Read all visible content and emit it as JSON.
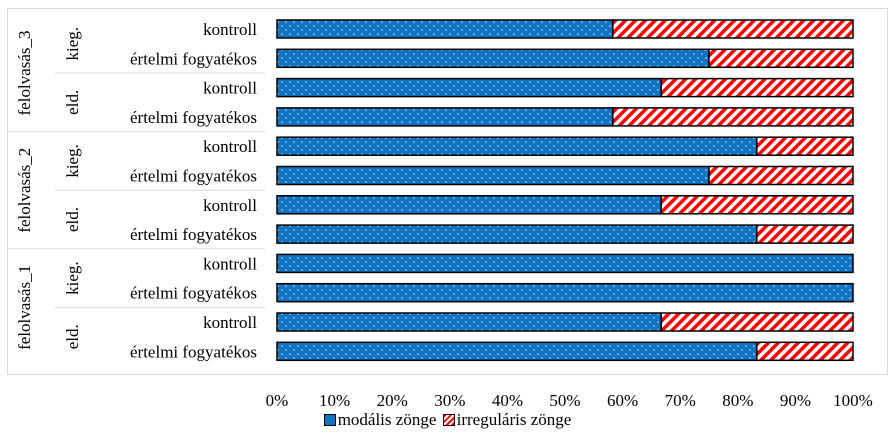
{
  "chart_data": {
    "type": "bar",
    "orientation": "horizontal",
    "stacked": "percent",
    "x_ticks": [
      "0%",
      "10%",
      "20%",
      "30%",
      "40%",
      "50%",
      "60%",
      "70%",
      "80%",
      "90%",
      "100%"
    ],
    "xlim": [
      0,
      100
    ],
    "levels": [
      {
        "label": "felolvasás_3",
        "subgroups": [
          {
            "label": "kieg.",
            "categories": [
              "kontroll",
              "értelmi fogyatékos"
            ]
          },
          {
            "label": "eld.",
            "categories": [
              "kontroll",
              "értelmi fogyatékos"
            ]
          }
        ]
      },
      {
        "label": "felolvasás_2",
        "subgroups": [
          {
            "label": "kieg.",
            "categories": [
              "kontroll",
              "értelmi fogyatékos"
            ]
          },
          {
            "label": "eld.",
            "categories": [
              "kontroll",
              "értelmi fogyatékos"
            ]
          }
        ]
      },
      {
        "label": "felolvasás_1",
        "subgroups": [
          {
            "label": "kieg.",
            "categories": [
              "kontroll",
              "értelmi fogyatékos"
            ]
          },
          {
            "label": "eld.",
            "categories": [
              "kontroll",
              "értelmi fogyatékos"
            ]
          }
        ]
      }
    ],
    "series": [
      {
        "name": "modális zönge",
        "color": "#1173c3",
        "pattern": "dots",
        "values": [
          58.3,
          75,
          66.7,
          58.3,
          83.3,
          75,
          66.7,
          83.3,
          100,
          100,
          66.7,
          83.3
        ]
      },
      {
        "name": "irreguláris zönge",
        "color": "#ff0000",
        "pattern": "diagonal-stripes",
        "values": [
          41.7,
          25,
          33.3,
          41.7,
          16.7,
          25,
          33.3,
          16.7,
          0,
          0,
          33.3,
          16.7
        ]
      }
    ],
    "grid": false,
    "legend_position": "bottom"
  }
}
